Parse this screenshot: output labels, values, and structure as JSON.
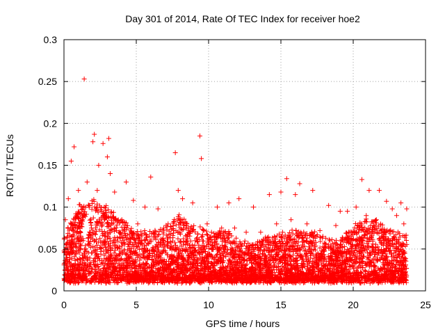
{
  "chart_data": {
    "type": "scatter",
    "title": "Day 301 of 2014, Rate Of TEC Index for receiver hoe2",
    "xlabel": "GPS time / hours",
    "ylabel": "ROTI / TECUs",
    "xlim": [
      0,
      25
    ],
    "ylim": [
      0,
      0.3
    ],
    "xticks": [
      0,
      5,
      10,
      15,
      20,
      25
    ],
    "xtick_labels": [
      "0",
      "5",
      "10",
      "15",
      "20",
      "25"
    ],
    "yticks": [
      0,
      0.05,
      0.1,
      0.15,
      0.2,
      0.25,
      0.3
    ],
    "ytick_labels": [
      "0",
      "0.05",
      "0.1",
      "0.15",
      "0.2",
      "0.25",
      "0.3"
    ],
    "grid": true,
    "marker": "+",
    "marker_color": "#ff0000",
    "series": [
      {
        "name": "ROTI",
        "x": [
          1.4,
          2.1,
          2.0,
          2.7,
          3.1,
          9.4,
          7.7,
          0.7,
          3.0,
          9.5,
          6.0,
          15.4,
          20.6,
          0.5,
          2.4,
          3.2,
          4.3,
          12.1,
          16.3,
          21.8,
          0.3,
          1.0,
          1.6,
          2.3,
          3.5,
          4.8,
          5.6,
          6.5,
          7.9,
          8.2,
          8.9,
          10.6,
          11.4,
          13.1,
          14.2,
          15.0,
          16.0,
          17.2,
          18.3,
          19.1,
          19.6,
          20.2,
          21.1,
          22.3,
          22.7,
          23.3,
          23.7,
          0.1,
          1.3,
          2.6,
          4.0,
          5.1,
          6.9,
          7.2,
          9.9,
          10.2,
          11.8,
          12.6,
          13.6,
          14.7,
          15.7,
          16.8,
          17.7,
          18.8,
          20.9,
          21.6,
          23.0,
          23.5,
          0.9,
          1.9,
          3.8,
          5.9,
          8.5,
          10.9,
          14.0,
          17.9,
          19.9,
          22.0
        ],
        "y": [
          0.253,
          0.187,
          0.178,
          0.176,
          0.182,
          0.185,
          0.165,
          0.172,
          0.16,
          0.158,
          0.136,
          0.134,
          0.133,
          0.155,
          0.15,
          0.14,
          0.13,
          0.11,
          0.128,
          0.12,
          0.11,
          0.12,
          0.13,
          0.12,
          0.118,
          0.108,
          0.1,
          0.098,
          0.12,
          0.11,
          0.105,
          0.1,
          0.105,
          0.1,
          0.115,
          0.118,
          0.115,
          0.12,
          0.102,
          0.095,
          0.095,
          0.1,
          0.12,
          0.107,
          0.098,
          0.105,
          0.098,
          0.085,
          0.09,
          0.095,
          0.085,
          0.08,
          0.075,
          0.08,
          0.08,
          0.07,
          0.075,
          0.07,
          0.07,
          0.08,
          0.085,
          0.08,
          0.072,
          0.078,
          0.09,
          0.085,
          0.09,
          0.08,
          0.07,
          0.075,
          0.07,
          0.065,
          0.075,
          0.075,
          0.06,
          0.065,
          0.07,
          0.065
        ]
      }
    ],
    "density_profile": {
      "x": [
        0,
        1,
        2,
        3,
        4,
        5,
        6,
        7,
        8,
        9,
        10,
        11,
        12,
        13,
        14,
        15,
        16,
        17,
        18,
        19,
        20,
        21,
        22,
        23,
        23.7
      ],
      "upper_envelope": [
        0.065,
        0.1,
        0.11,
        0.1,
        0.085,
        0.07,
        0.07,
        0.075,
        0.09,
        0.08,
        0.07,
        0.075,
        0.06,
        0.055,
        0.065,
        0.07,
        0.075,
        0.07,
        0.065,
        0.06,
        0.075,
        0.09,
        0.08,
        0.07,
        0.065
      ],
      "floor": 0.012,
      "x_start": 0,
      "x_end": 23.7
    }
  }
}
